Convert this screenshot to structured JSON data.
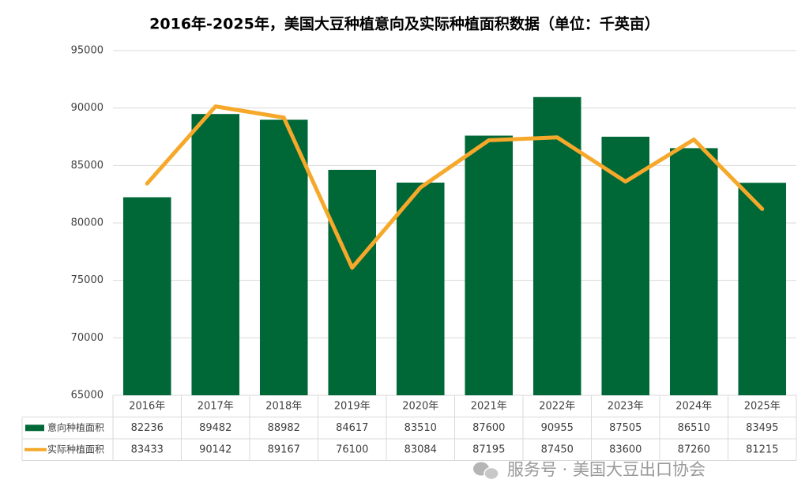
{
  "chart_data": {
    "type": "bar-line",
    "title": "2016年-2025年，美国大豆种植意向及实际种植面积数据（单位：千英亩）",
    "categories": [
      "2016年",
      "2017年",
      "2018年",
      "2019年",
      "2020年",
      "2021年",
      "2022年",
      "2023年",
      "2024年",
      "2025年"
    ],
    "series": [
      {
        "name": "意向种植面积",
        "type": "bar",
        "color": "#006837",
        "values": [
          82236,
          89482,
          88982,
          84617,
          83510,
          87600,
          90955,
          87505,
          86510,
          83495
        ]
      },
      {
        "name": "实际种植面积",
        "type": "line",
        "color": "#f5a82a",
        "values": [
          83433,
          90142,
          89167,
          76100,
          83084,
          87195,
          87450,
          83600,
          87260,
          81215
        ]
      }
    ],
    "ylim": [
      65000,
      95000
    ],
    "yticks": [
      65000,
      70000,
      75000,
      80000,
      85000,
      90000,
      95000
    ],
    "grid": true
  },
  "watermark": "服务号 · 美国大豆出口协会"
}
